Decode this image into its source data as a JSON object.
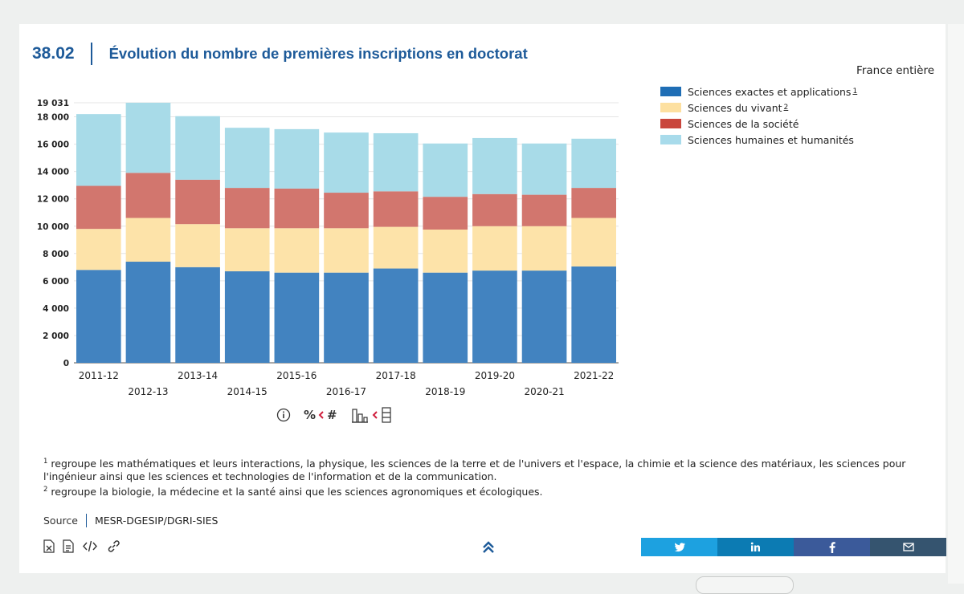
{
  "header": {
    "figure_number": "38.02",
    "title": "Évolution du nombre de premières inscriptions en doctorat"
  },
  "scope": "France entière",
  "legend": [
    {
      "label": "Sciences exactes et applications",
      "note": "1",
      "color": "#1f6eb5"
    },
    {
      "label": "Sciences du vivant",
      "note": "2",
      "color": "#fde0a0"
    },
    {
      "label": "Sciences de la société",
      "note": "",
      "color": "#c9463d"
    },
    {
      "label": "Sciences humaines et humanités",
      "note": "",
      "color": "#a8dbeb"
    }
  ],
  "chart_data": {
    "type": "bar",
    "stacked": true,
    "categories": [
      "2011-12",
      "2012-13",
      "2013-14",
      "2014-15",
      "2015-16",
      "2016-17",
      "2017-18",
      "2018-19",
      "2019-20",
      "2020-21",
      "2021-22"
    ],
    "series": [
      {
        "name": "Sciences exactes et applications",
        "color": "#4283c0",
        "values": [
          6800,
          7400,
          7000,
          6700,
          6600,
          6600,
          6900,
          6600,
          6750,
          6750,
          7050
        ]
      },
      {
        "name": "Sciences du vivant",
        "color": "#fde3a9",
        "values": [
          3000,
          3200,
          3150,
          3150,
          3250,
          3250,
          3050,
          3150,
          3250,
          3250,
          3550
        ]
      },
      {
        "name": "Sciences de la société",
        "color": "#d2766e",
        "values": [
          3150,
          3300,
          3250,
          2950,
          2900,
          2600,
          2600,
          2400,
          2350,
          2300,
          2200
        ]
      },
      {
        "name": "Sciences humaines et humanités",
        "color": "#a8dbe8",
        "values": [
          5250,
          5131,
          4650,
          4400,
          4350,
          4400,
          4250,
          3900,
          4100,
          3750,
          3600
        ]
      }
    ],
    "yticks": [
      0,
      2000,
      4000,
      6000,
      8000,
      10000,
      12000,
      14000,
      16000,
      18000,
      19031
    ],
    "ytick_labels": [
      "0",
      "2 000",
      "4 000",
      "6 000",
      "8 000",
      "10 000",
      "12 000",
      "14 000",
      "16 000",
      "18 000",
      "19 031"
    ],
    "ylim": [
      0,
      19031
    ],
    "grid": true
  },
  "controls": {
    "info": "i",
    "percent_hash": "%",
    "hash": "#"
  },
  "footnotes": {
    "note1_marker": "1",
    "note1": "regroupe les mathématiques et leurs interactions, la physique, les sciences de la terre et de l'univers et l'espace, la chimie et la science des matériaux, les sciences pour l'ingénieur ainsi que les sciences et technologies de l'information et de la communication.",
    "note2_marker": "2",
    "note2": "regroupe la biologie, la médecine et la santé ainsi que les sciences agronomiques et écologiques."
  },
  "source": {
    "label": "Source",
    "value": "MESR-DGESIP/DGRI-SIES"
  },
  "share": [
    {
      "name": "twitter",
      "color": "#1da1e0"
    },
    {
      "name": "linkedin",
      "color": "#0c7bb3"
    },
    {
      "name": "facebook",
      "color": "#3b5a9a"
    },
    {
      "name": "email",
      "color": "#35546f"
    }
  ]
}
